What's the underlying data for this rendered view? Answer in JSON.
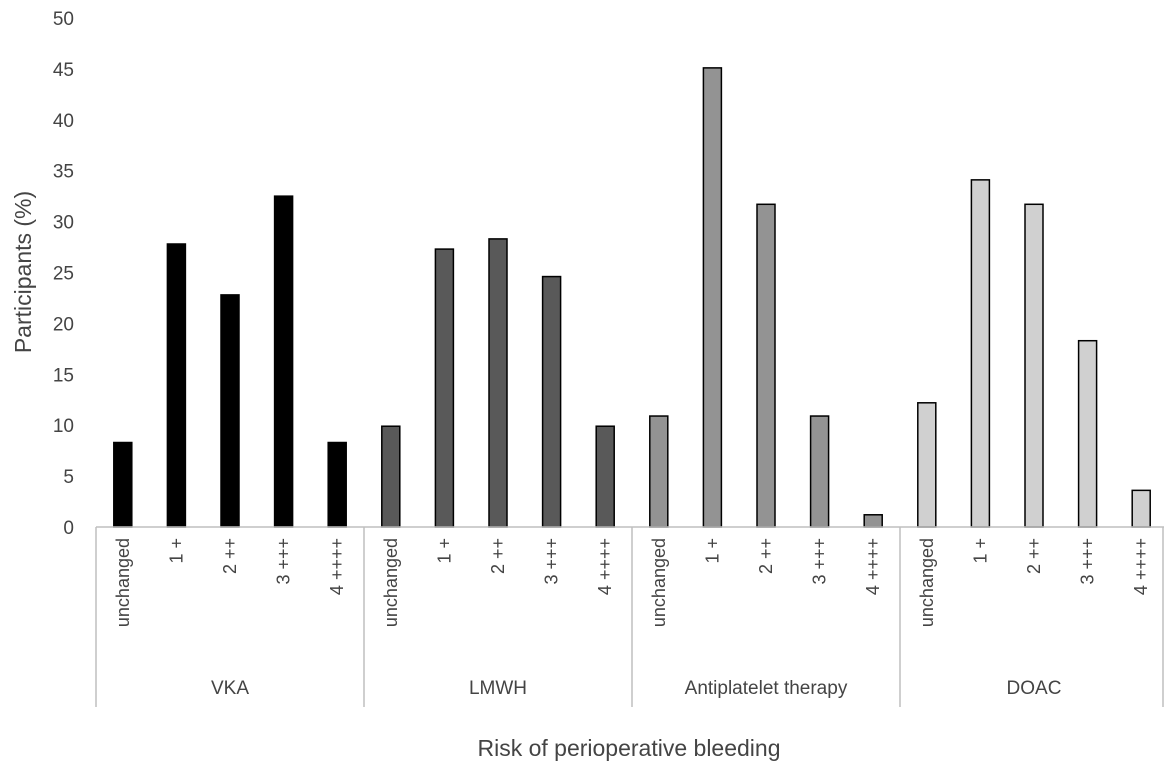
{
  "chart_data": {
    "type": "bar",
    "title": "",
    "xlabel": "Risk of perioperative bleeding",
    "ylabel": "Participants (%)",
    "ylim": [
      0,
      50
    ],
    "yticks": [
      0,
      5,
      10,
      15,
      20,
      25,
      30,
      35,
      40,
      45,
      50
    ],
    "grid": false,
    "legend": "none",
    "subcategories": [
      "unchanged",
      "1 +",
      "2 ++",
      "3 +++",
      "4 ++++"
    ],
    "groups": [
      {
        "name": "VKA",
        "color": "#000000",
        "values": [
          8.3,
          27.8,
          22.8,
          32.5,
          8.3
        ]
      },
      {
        "name": "LMWH",
        "color": "#595959",
        "values": [
          9.9,
          27.3,
          28.3,
          24.6,
          9.9
        ]
      },
      {
        "name": "Antiplatelet therapy",
        "color": "#939393",
        "values": [
          10.9,
          45.1,
          31.7,
          10.9,
          1.2
        ]
      },
      {
        "name": "DOAC",
        "color": "#d0d0d0",
        "values": [
          12.2,
          34.1,
          31.7,
          18.3,
          3.6
        ]
      }
    ]
  }
}
